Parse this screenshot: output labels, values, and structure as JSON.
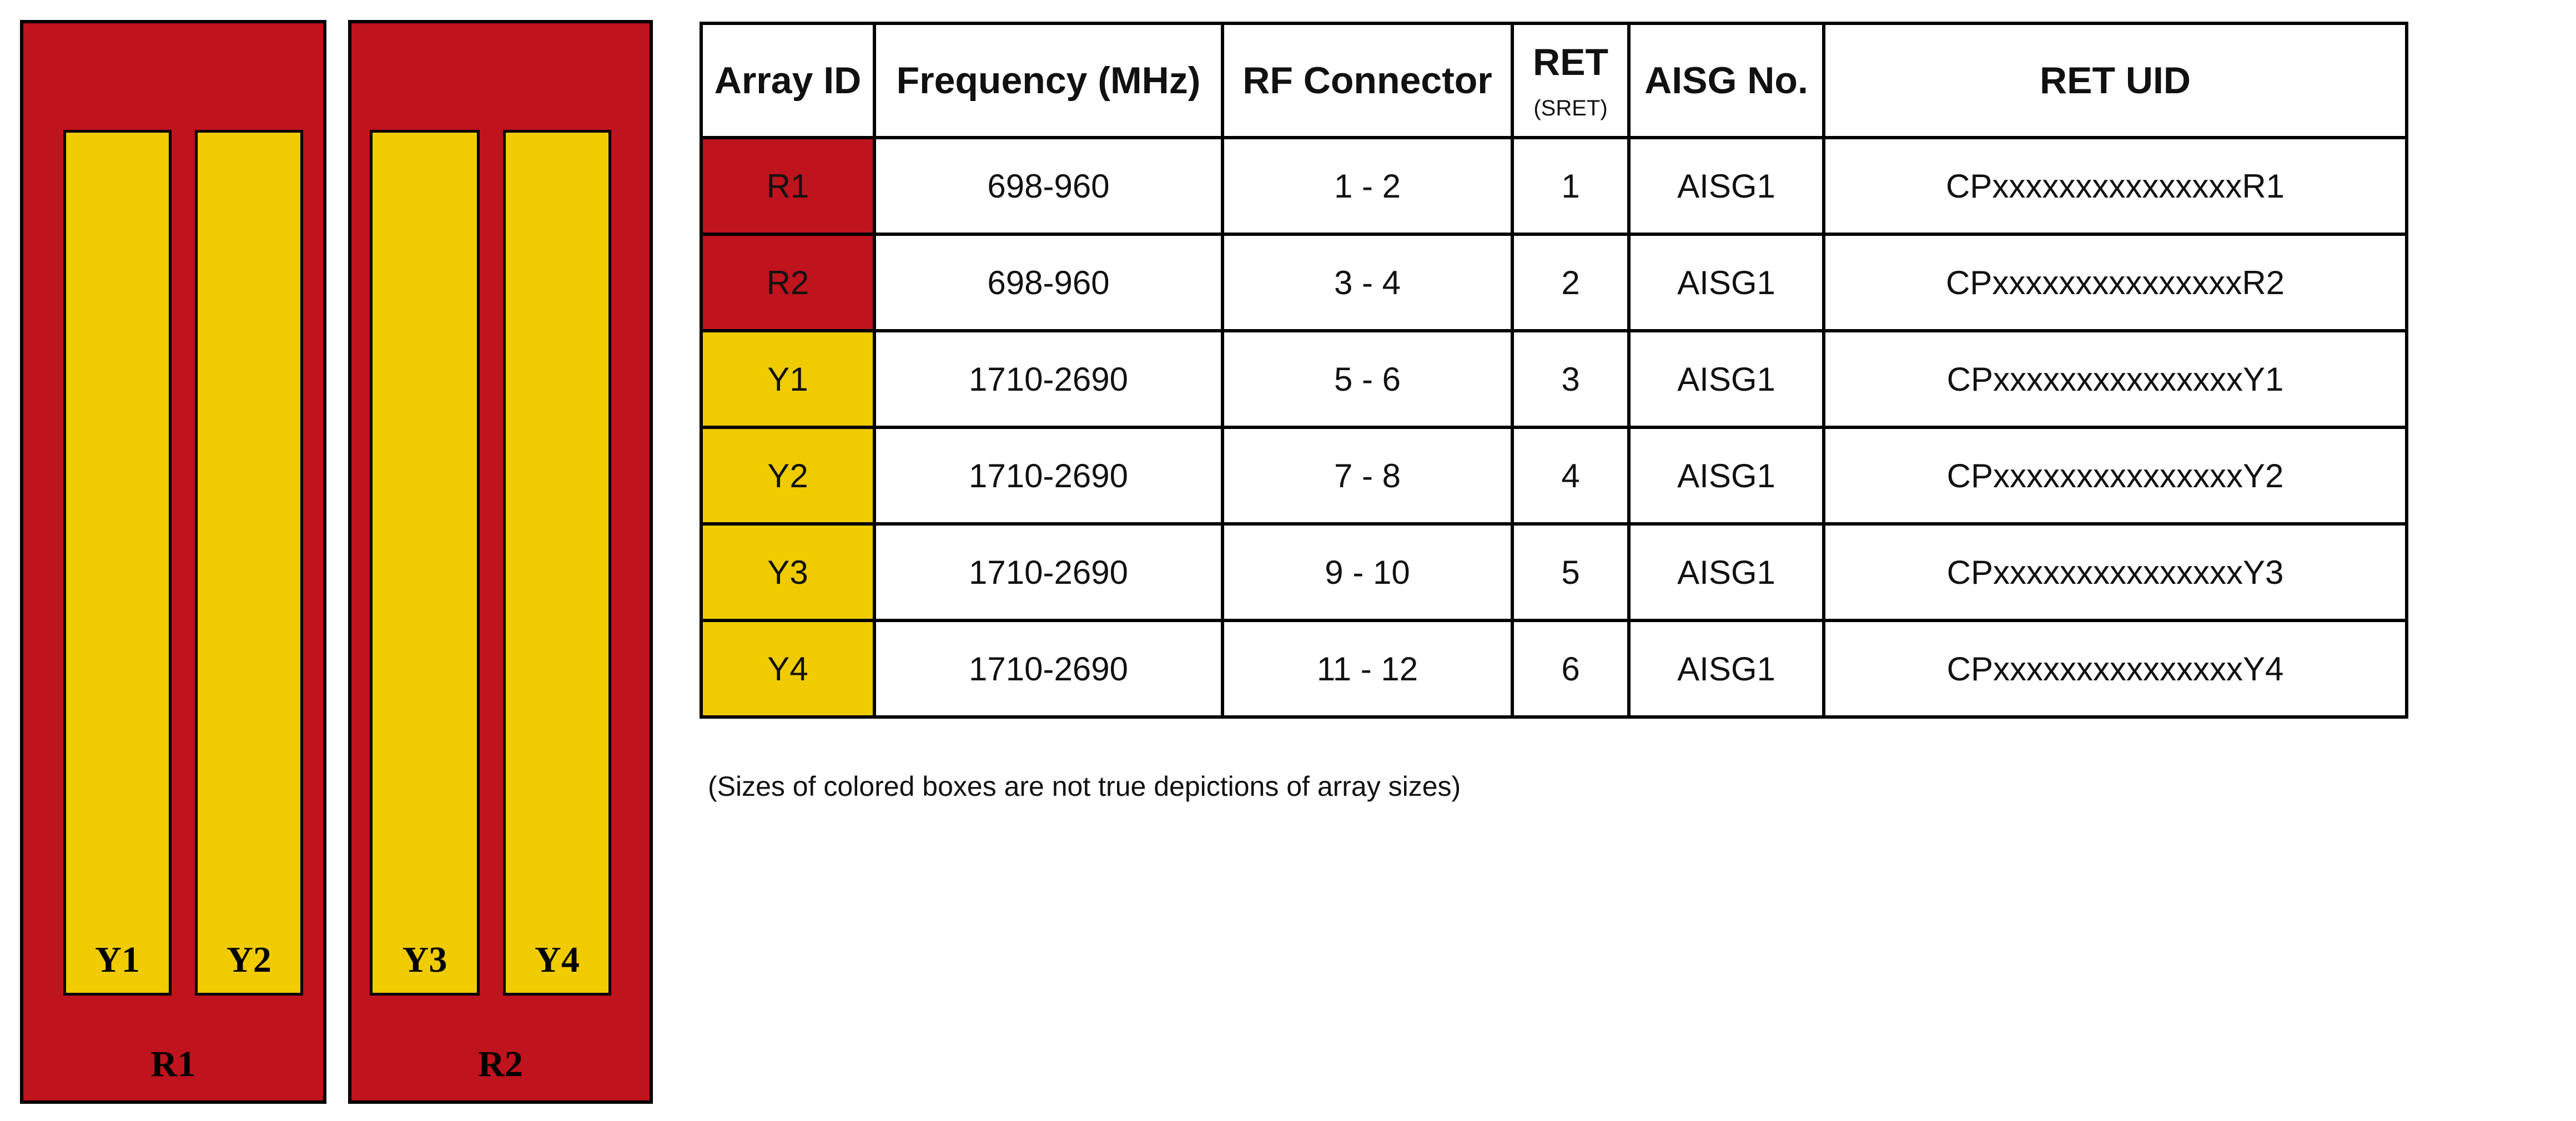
{
  "diagram": {
    "panels": [
      {
        "label": "R1",
        "elements": [
          "Y1",
          "Y2"
        ]
      },
      {
        "label": "R2",
        "elements": [
          "Y3",
          "Y4"
        ]
      }
    ]
  },
  "table": {
    "headers": {
      "array_id": "Array ID",
      "frequency": "Frequency (MHz)",
      "rf_connector": "RF Connector",
      "ret": "RET",
      "ret_sub": "(SRET)",
      "aisg_no": "AISG No.",
      "ret_uid": "RET UID"
    },
    "rows": [
      {
        "array_id": "R1",
        "frequency": "698-960",
        "rf_connector": "1 - 2",
        "ret": "1",
        "aisg_no": "AISG1",
        "ret_uid": "CPxxxxxxxxxxxxxxxR1",
        "color": "#BF131D"
      },
      {
        "array_id": "R2",
        "frequency": "698-960",
        "rf_connector": "3 - 4",
        "ret": "2",
        "aisg_no": "AISG1",
        "ret_uid": "CPxxxxxxxxxxxxxxxR2",
        "color": "#BF131D"
      },
      {
        "array_id": "Y1",
        "frequency": "1710-2690",
        "rf_connector": "5 - 6",
        "ret": "3",
        "aisg_no": "AISG1",
        "ret_uid": "CPxxxxxxxxxxxxxxxY1",
        "color": "#EFCB00"
      },
      {
        "array_id": "Y2",
        "frequency": "1710-2690",
        "rf_connector": "7 - 8",
        "ret": "4",
        "aisg_no": "AISG1",
        "ret_uid": "CPxxxxxxxxxxxxxxxY2",
        "color": "#EFCB00"
      },
      {
        "array_id": "Y3",
        "frequency": "1710-2690",
        "rf_connector": "9 - 10",
        "ret": "5",
        "aisg_no": "AISG1",
        "ret_uid": "CPxxxxxxxxxxxxxxxY3",
        "color": "#EFCB00"
      },
      {
        "array_id": "Y4",
        "frequency": "1710-2690",
        "rf_connector": "11 - 12",
        "ret": "6",
        "aisg_no": "AISG1",
        "ret_uid": "CPxxxxxxxxxxxxxxxY4",
        "color": "#EFCB00"
      }
    ]
  },
  "note": "(Sizes of colored boxes are not true depictions of array sizes)",
  "colors": {
    "low_band": "#BF131D",
    "high_band": "#EFCB00"
  }
}
